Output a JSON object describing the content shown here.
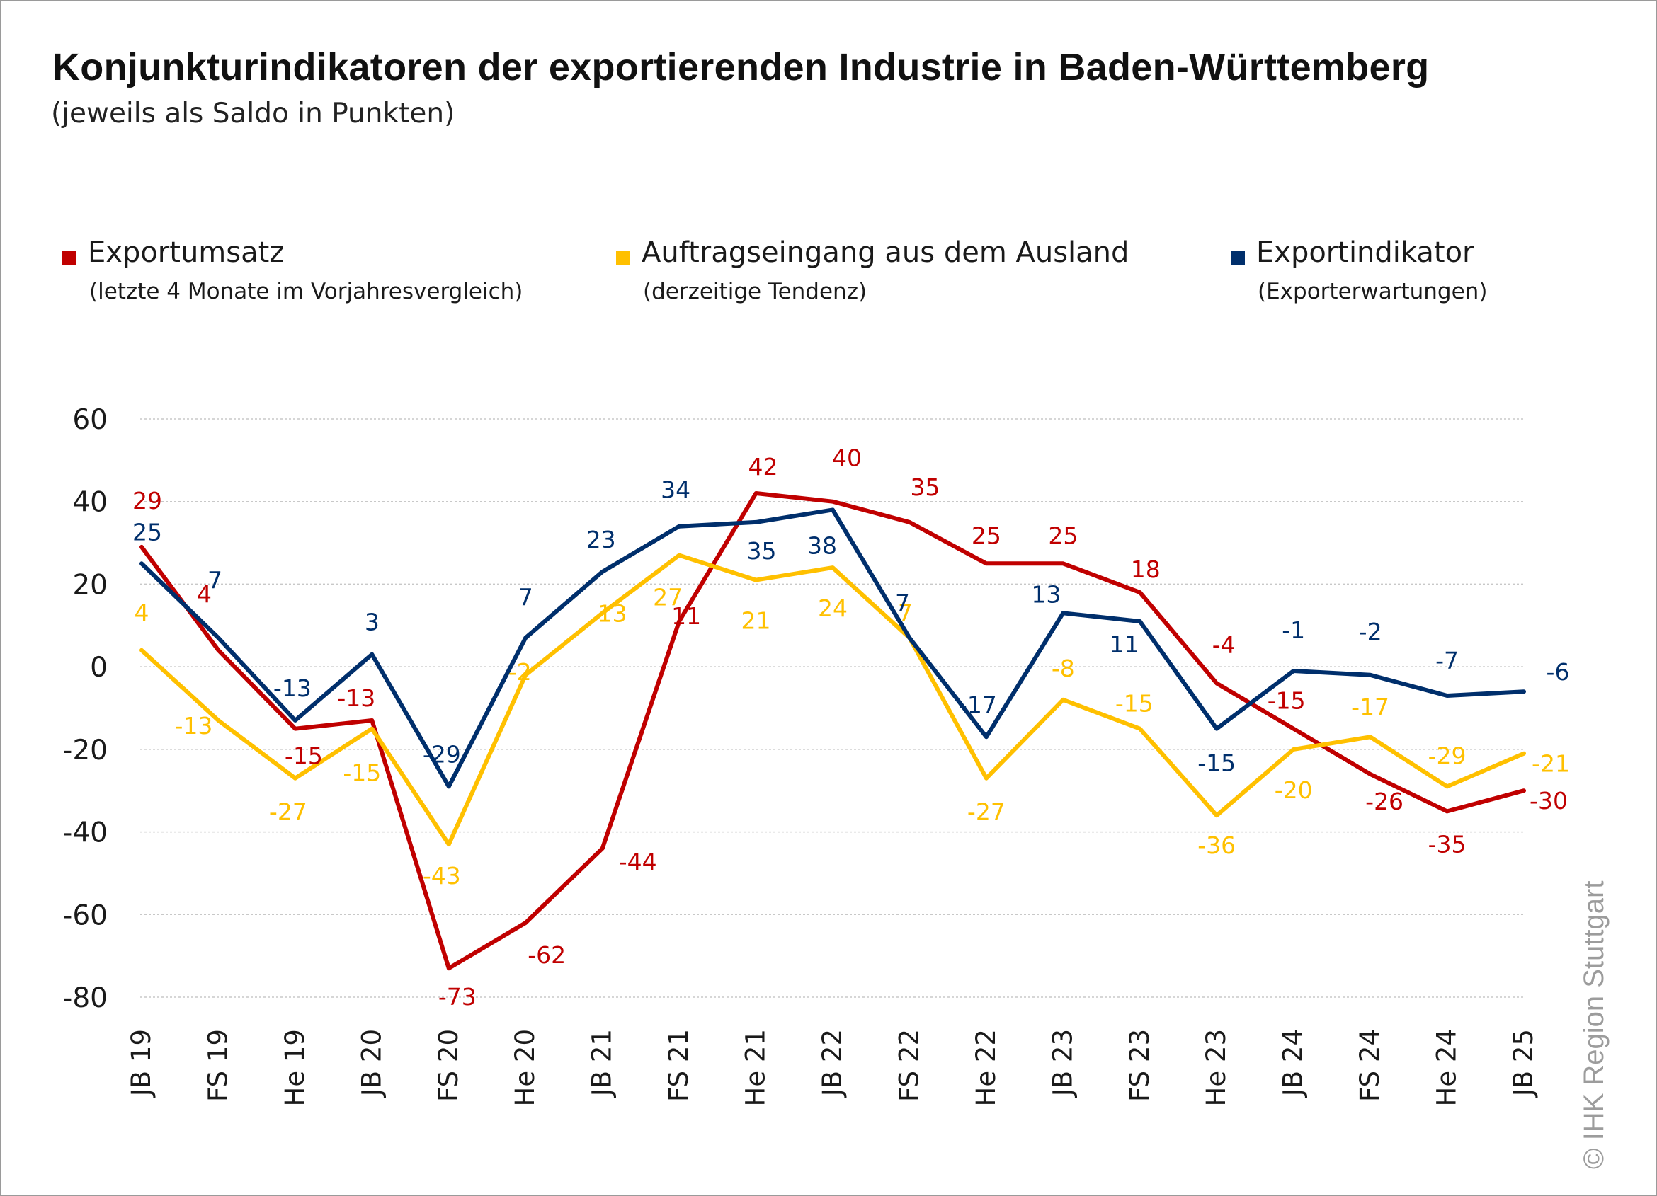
{
  "chart_data": {
    "type": "line",
    "title": "Konjunkturindikatoren der exportierenden Industrie in Baden-Württemberg",
    "subtitle": "(jeweils als Saldo in Punkten)",
    "categories": [
      "JB 19",
      "FS 19",
      "He 19",
      "JB 20",
      "FS 20",
      "He 20",
      "JB 21",
      "FS 21",
      "He 21",
      "JB 22",
      "FS 22",
      "He 22",
      "JB 23",
      "FS 23",
      "He 23",
      "JB 24",
      "FS 24",
      "He 24",
      "JB 25"
    ],
    "ylim": [
      -80,
      60
    ],
    "yticks": [
      60,
      40,
      20,
      0,
      -20,
      -40,
      -60,
      -80
    ],
    "yticks_labels": [
      "60",
      "40",
      "20",
      "0",
      "-20",
      "-40",
      "-60",
      "-80"
    ],
    "grid": true,
    "legend_position": "top",
    "series": [
      {
        "name": "Exportumsatz",
        "subtitle": "(letzte 4 Monate  im Vorjahresvergleich)",
        "color": "#c00000",
        "values": [
          29,
          4,
          -15,
          -13,
          -73,
          -62,
          -44,
          11,
          42,
          40,
          35,
          25,
          25,
          18,
          -4,
          -15,
          -26,
          -35,
          -30
        ],
        "labels": [
          "29",
          "4",
          "-15",
          "-13",
          "-73",
          "-62",
          "-44",
          "11",
          "42",
          "40",
          "35",
          "25",
          "25",
          "18",
          "-4",
          "-15",
          "-26",
          "-35",
          "-30"
        ]
      },
      {
        "name": "Auftragseingang aus dem Ausland",
        "subtitle": "(derzeitige Tendenz)",
        "color": "#ffc000",
        "values": [
          4,
          -13,
          -27,
          -15,
          -43,
          -2,
          13,
          27,
          21,
          24,
          7,
          -27,
          -8,
          -15,
          -36,
          -20,
          -17,
          -29,
          -21
        ],
        "labels": [
          "4",
          "-13",
          "-27",
          "-15",
          "-43",
          "-2",
          "13",
          "27",
          "21",
          "24",
          "7",
          "-27",
          "-8",
          "-15",
          "-36",
          "-20",
          "-17",
          "-29",
          "-21"
        ]
      },
      {
        "name": "Exportindikator",
        "subtitle": "(Exporterwartungen)",
        "color": "#002f6c",
        "values": [
          25,
          7,
          -13,
          3,
          -29,
          7,
          23,
          34,
          35,
          38,
          7,
          -17,
          13,
          11,
          -15,
          -1,
          -2,
          -7,
          -6
        ],
        "labels": [
          "25",
          "7",
          "-13",
          "3",
          "-29",
          "7",
          "23",
          "34",
          "35",
          "38",
          "7",
          "-17",
          "13",
          "11",
          "-15",
          "-1",
          "-2",
          "-7",
          "-6"
        ]
      }
    ]
  },
  "copyright": "© IHK Region Stuttgart"
}
